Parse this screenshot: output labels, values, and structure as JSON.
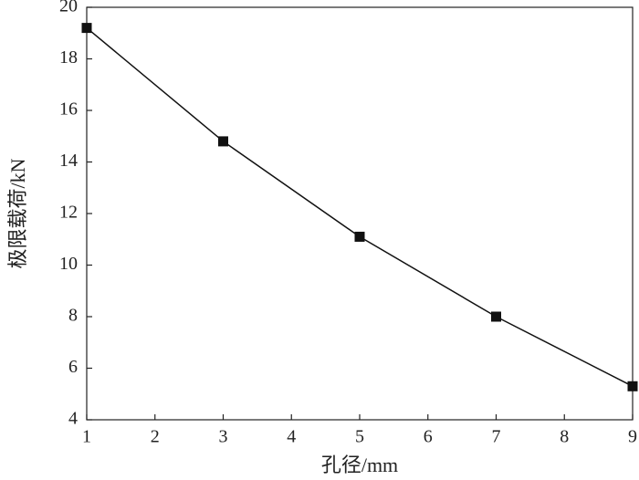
{
  "chart_data": {
    "type": "line",
    "x_label": "孔径/mm",
    "y_label": "极限载荷/kN",
    "x": [
      1,
      3,
      5,
      7,
      9
    ],
    "series": [
      {
        "color": "#111111",
        "values": [
          19.2,
          14.8,
          11.1,
          8.0,
          5.3
        ]
      }
    ],
    "xlim": [
      1,
      9
    ],
    "xticks": [
      1,
      2,
      3,
      4,
      5,
      6,
      7,
      8,
      9
    ],
    "ylim": [
      4,
      20
    ],
    "yticks": [
      4,
      6,
      8,
      10,
      12,
      14,
      16,
      18,
      20
    ],
    "grid": false
  }
}
